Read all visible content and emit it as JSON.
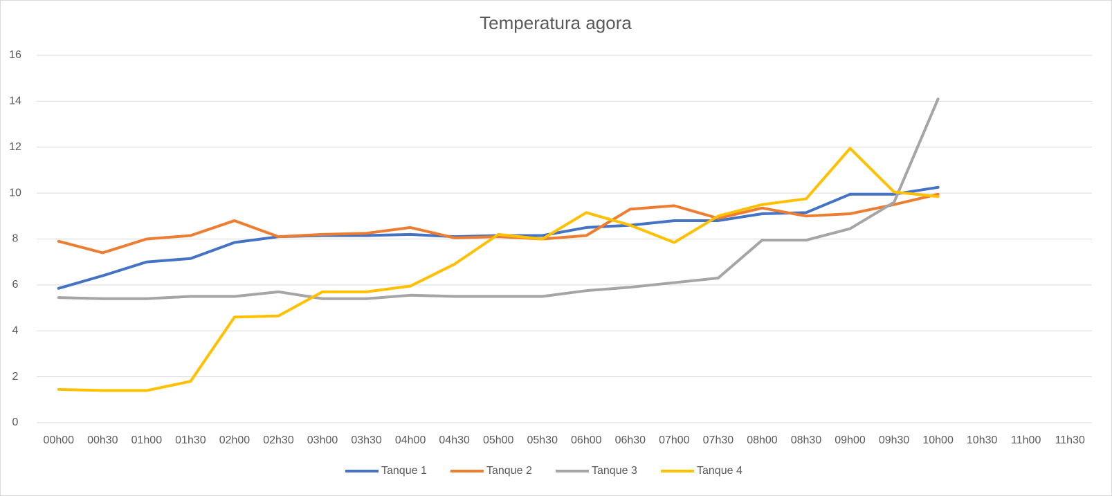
{
  "chart_data": {
    "type": "line",
    "title": "Temperatura agora",
    "categories": [
      "00h00",
      "00h30",
      "01h00",
      "01h30",
      "02h00",
      "02h30",
      "03h00",
      "03h30",
      "04h00",
      "04h30",
      "05h00",
      "05h30",
      "06h00",
      "06h30",
      "07h00",
      "07h30",
      "08h00",
      "08h30",
      "09h00",
      "09h30",
      "10h00",
      "10h30",
      "11h00",
      "11h30"
    ],
    "series": [
      {
        "name": "Tanque 1",
        "color": "#4472c4",
        "values": [
          5.85,
          6.4,
          7.0,
          7.15,
          7.85,
          8.1,
          8.15,
          8.15,
          8.2,
          8.1,
          8.15,
          8.15,
          8.5,
          8.6,
          8.8,
          8.8,
          9.1,
          9.15,
          9.95,
          9.95,
          10.25,
          null,
          null,
          null
        ]
      },
      {
        "name": "Tanque 2",
        "color": "#ed7d31",
        "values": [
          7.9,
          7.4,
          8.0,
          8.15,
          8.8,
          8.1,
          8.2,
          8.25,
          8.5,
          8.05,
          8.1,
          8.0,
          8.15,
          9.3,
          9.45,
          8.9,
          9.35,
          9.0,
          9.1,
          9.5,
          9.95,
          null,
          null,
          null
        ]
      },
      {
        "name": "Tanque 3",
        "color": "#a5a5a5",
        "values": [
          5.45,
          5.4,
          5.4,
          5.5,
          5.5,
          5.7,
          5.4,
          5.4,
          5.55,
          5.5,
          5.5,
          5.5,
          5.75,
          5.9,
          6.1,
          6.3,
          7.95,
          7.95,
          8.45,
          9.6,
          14.1,
          null,
          null,
          null
        ]
      },
      {
        "name": "Tanque 4",
        "color": "#ffc000",
        "values": [
          1.45,
          1.4,
          1.4,
          1.8,
          4.6,
          4.65,
          5.7,
          5.7,
          5.95,
          6.9,
          8.2,
          8.0,
          9.15,
          8.6,
          7.85,
          9.0,
          9.5,
          9.75,
          11.95,
          10.05,
          9.85,
          null,
          null,
          null
        ]
      }
    ],
    "ylim": [
      0,
      16
    ],
    "yticks": [
      0,
      2,
      4,
      6,
      8,
      10,
      12,
      14,
      16
    ],
    "grid": true,
    "legend": "bottom"
  }
}
